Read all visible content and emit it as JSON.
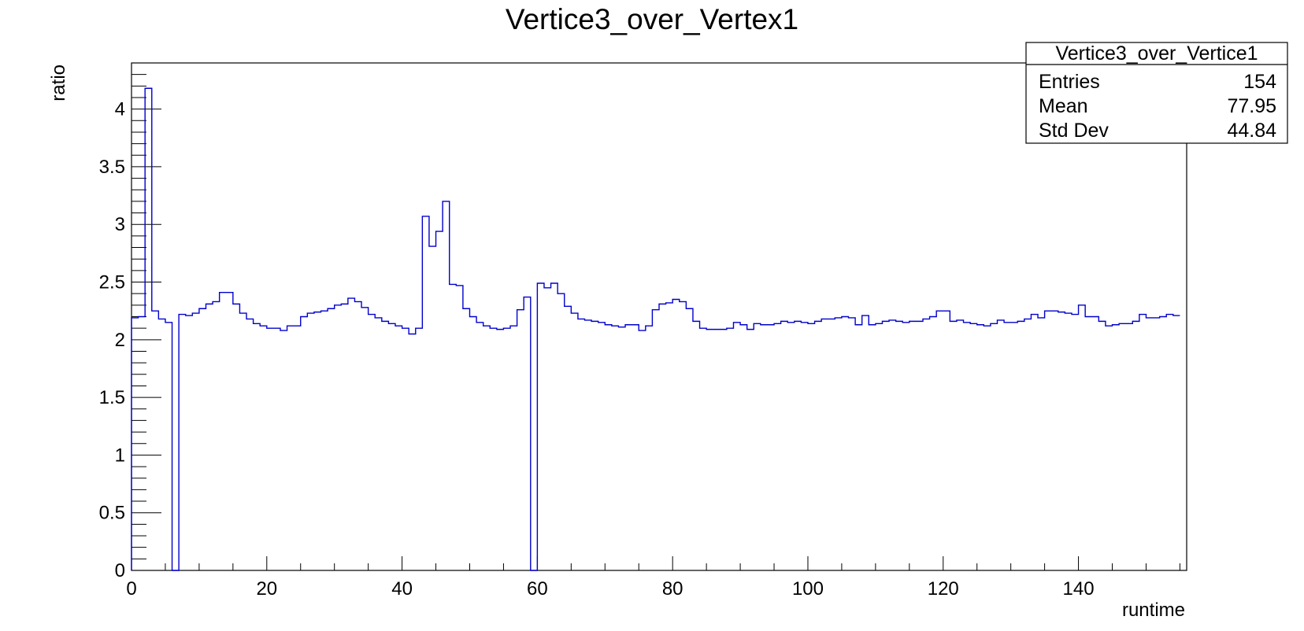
{
  "chart_data": {
    "type": "histogram",
    "title": "Vertice3_over_Vertex1",
    "xlabel": "runtime",
    "ylabel": "ratio",
    "xlim": [
      0,
      156
    ],
    "ylim": [
      0,
      4.4
    ],
    "x_ticks": [
      0,
      20,
      40,
      60,
      80,
      100,
      120,
      140
    ],
    "y_ticks": [
      0,
      0.5,
      1,
      1.5,
      2,
      2.5,
      3,
      3.5,
      4
    ],
    "x_tick_labels": [
      "0",
      "20",
      "40",
      "60",
      "80",
      "100",
      "120",
      "140"
    ],
    "y_tick_labels": [
      "0",
      "0.5",
      "1",
      "1.5",
      "2",
      "2.5",
      "3",
      "3.5",
      "4"
    ],
    "bin_width": 1,
    "values": [
      2.19,
      2.2,
      4.18,
      2.25,
      2.18,
      2.15,
      0,
      2.22,
      2.21,
      2.23,
      2.27,
      2.31,
      2.33,
      2.41,
      2.41,
      2.31,
      2.23,
      2.18,
      2.14,
      2.12,
      2.1,
      2.1,
      2.08,
      2.12,
      2.12,
      2.2,
      2.23,
      2.24,
      2.25,
      2.27,
      2.3,
      2.31,
      2.36,
      2.33,
      2.28,
      2.22,
      2.19,
      2.16,
      2.14,
      2.12,
      2.1,
      2.05,
      2.1,
      3.07,
      2.81,
      2.94,
      3.2,
      2.48,
      2.47,
      2.27,
      2.2,
      2.15,
      2.12,
      2.1,
      2.09,
      2.1,
      2.12,
      2.26,
      2.37,
      0,
      2.49,
      2.45,
      2.49,
      2.4,
      2.29,
      2.23,
      2.18,
      2.17,
      2.16,
      2.15,
      2.13,
      2.12,
      2.11,
      2.13,
      2.13,
      2.08,
      2.12,
      2.26,
      2.31,
      2.32,
      2.35,
      2.33,
      2.27,
      2.16,
      2.1,
      2.09,
      2.09,
      2.09,
      2.1,
      2.15,
      2.13,
      2.09,
      2.14,
      2.13,
      2.13,
      2.14,
      2.16,
      2.15,
      2.16,
      2.15,
      2.14,
      2.16,
      2.18,
      2.18,
      2.19,
      2.2,
      2.19,
      2.13,
      2.21,
      2.13,
      2.14,
      2.16,
      2.17,
      2.16,
      2.15,
      2.16,
      2.16,
      2.18,
      2.2,
      2.25,
      2.25,
      2.16,
      2.17,
      2.15,
      2.14,
      2.13,
      2.12,
      2.14,
      2.17,
      2.15,
      2.15,
      2.16,
      2.18,
      2.22,
      2.19,
      2.25,
      2.25,
      2.24,
      2.23,
      2.22,
      2.3,
      2.2,
      2.2,
      2.16,
      2.12,
      2.13,
      2.14,
      2.14,
      2.16,
      2.22,
      2.19,
      2.19,
      2.2,
      2.22,
      2.21
    ],
    "line_color": "#0000cc",
    "stats_box": {
      "name": "Vertice3_over_Vertice1",
      "rows": [
        {
          "label": "Entries",
          "value": "154"
        },
        {
          "label": "Mean",
          "value": "77.95"
        },
        {
          "label": "Std Dev",
          "value": "44.84"
        }
      ]
    }
  }
}
